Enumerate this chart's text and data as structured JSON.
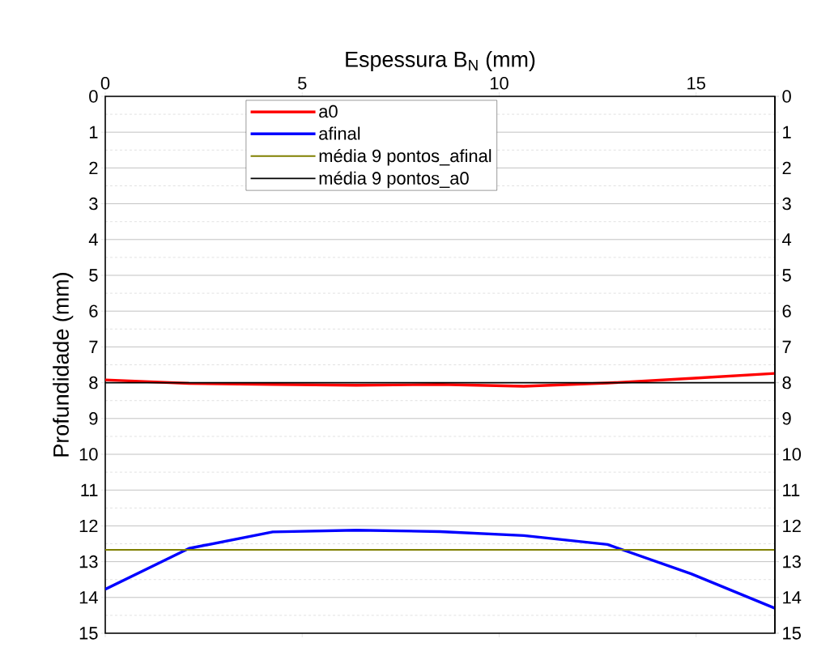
{
  "chart_data": {
    "type": "line",
    "xlabel": "Espessura B$_{N}$ (mm)",
    "ylabel": "Profundidade (mm)",
    "x": [
      0,
      2.125,
      4.25,
      6.375,
      8.5,
      10.625,
      12.75,
      14.875,
      17
    ],
    "series": [
      {
        "name": "a0",
        "color": "#ff0000",
        "values": [
          7.92,
          8.02,
          8.05,
          8.07,
          8.05,
          8.1,
          8.01,
          7.88,
          7.74
        ]
      },
      {
        "name": "afinal",
        "color": "#0000ff",
        "values": [
          13.77,
          12.63,
          12.17,
          12.12,
          12.16,
          12.27,
          12.52,
          13.34,
          14.3
        ]
      },
      {
        "name": "média 9 pontos_afinal",
        "color": "#808000",
        "values": [
          12.67,
          12.67,
          12.67,
          12.67,
          12.67,
          12.67,
          12.67,
          12.67,
          12.67
        ]
      },
      {
        "name": "média 9 pontos_a0",
        "color": "#000000",
        "values": [
          8.0,
          8.0,
          8.0,
          8.0,
          8.0,
          8.0,
          8.0,
          8.0,
          8.0
        ]
      }
    ],
    "xlim": [
      0,
      17
    ],
    "xticks": [
      0,
      5,
      10,
      15
    ],
    "ylim": [
      15,
      0
    ],
    "yticks": [
      0,
      1,
      2,
      3,
      4,
      5,
      6,
      7,
      8,
      9,
      10,
      11,
      12,
      13,
      14,
      15
    ],
    "y2lim": [
      15,
      0
    ],
    "y2ticks": [
      0,
      1,
      2,
      3,
      4,
      5,
      6,
      7,
      8,
      9,
      10,
      11,
      12,
      13,
      14,
      15
    ],
    "grid": "y",
    "legend": "top",
    "marker": "none",
    "line_style": "solid"
  }
}
